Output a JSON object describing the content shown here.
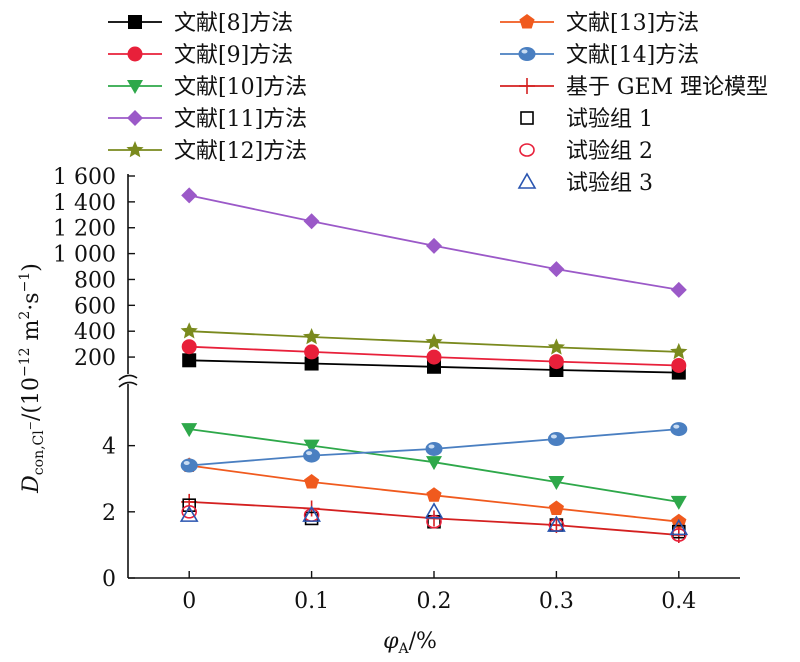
{
  "chart_data": {
    "type": "line",
    "x": [
      0,
      0.1,
      0.2,
      0.3,
      0.4
    ],
    "x_tick_labels": [
      "0",
      "0.1",
      "0.2",
      "0.3",
      "0.4"
    ],
    "xlim": [
      -0.05,
      0.45
    ],
    "xlabel_main": "φ",
    "xlabel_sub": "A",
    "xlabel_rest": "/%",
    "ylabel_main": "D",
    "ylabel_sub": "con,Cl",
    "ylabel_sub_sup": "−",
    "ylabel_rest_1": "/(10",
    "ylabel_exp": "−12",
    "ylabel_rest_2": " m",
    "ylabel_exp2": "2",
    "ylabel_rest_3": "·s",
    "ylabel_exp3": "−1",
    "ylabel_rest_4": ")",
    "y_axis_broken": true,
    "y_lower_range": [
      0,
      5.5
    ],
    "y_lower_ticks": [
      0,
      2,
      4
    ],
    "y_lower_tick_labels": [
      "0",
      "2",
      "4"
    ],
    "y_upper_range": [
      100,
      1600
    ],
    "y_upper_ticks": [
      200,
      400,
      600,
      800,
      1000,
      1200,
      1400,
      1600
    ],
    "y_upper_tick_labels": [
      "200",
      "400",
      "600",
      "800",
      "1 000",
      "1 200",
      "1 400",
      "1 600"
    ],
    "legend_placement": "top",
    "series": [
      {
        "name": "文献[8]方法",
        "color": "#000000",
        "marker": "square",
        "values": [
          175,
          150,
          125,
          100,
          80
        ]
      },
      {
        "name": "文献[9]方法",
        "color": "#e8203a",
        "marker": "circle",
        "values": [
          280,
          240,
          200,
          165,
          135
        ]
      },
      {
        "name": "文献[10]方法",
        "color": "#2ea84a",
        "marker": "triangle-down",
        "values": [
          4.5,
          4.0,
          3.5,
          2.9,
          2.3
        ]
      },
      {
        "name": "文献[11]方法",
        "color": "#9b59c8",
        "marker": "diamond",
        "values": [
          1450,
          1250,
          1060,
          880,
          720
        ]
      },
      {
        "name": "文献[12]方法",
        "color": "#7a8a1e",
        "marker": "star",
        "values": [
          400,
          355,
          315,
          275,
          240
        ]
      },
      {
        "name": "文献[13]方法",
        "color": "#f05a1e",
        "marker": "pentagon",
        "values": [
          3.4,
          2.9,
          2.5,
          2.1,
          1.7
        ]
      },
      {
        "name": "文献[14]方法",
        "color": "#4a7fc1",
        "marker": "sphere",
        "values": [
          3.4,
          3.7,
          3.9,
          4.2,
          4.5
        ]
      },
      {
        "name": "基于 GEM 理论模型",
        "color": "#d42020",
        "marker": "plus",
        "values": [
          2.3,
          2.1,
          1.8,
          1.6,
          1.3
        ]
      },
      {
        "name": "试验组 1",
        "color": "#000000",
        "marker": "open-square",
        "line": false,
        "values": [
          2.2,
          1.8,
          1.7,
          1.6,
          1.4
        ]
      },
      {
        "name": "试验组 2",
        "color": "#e8203a",
        "marker": "open-circle",
        "line": false,
        "values": [
          2.0,
          1.9,
          1.7,
          1.6,
          1.3
        ]
      },
      {
        "name": "试验组 3",
        "color": "#2a55b0",
        "marker": "open-triangle",
        "line": false,
        "values": [
          1.9,
          1.9,
          2.0,
          1.6,
          1.5
        ]
      }
    ]
  }
}
